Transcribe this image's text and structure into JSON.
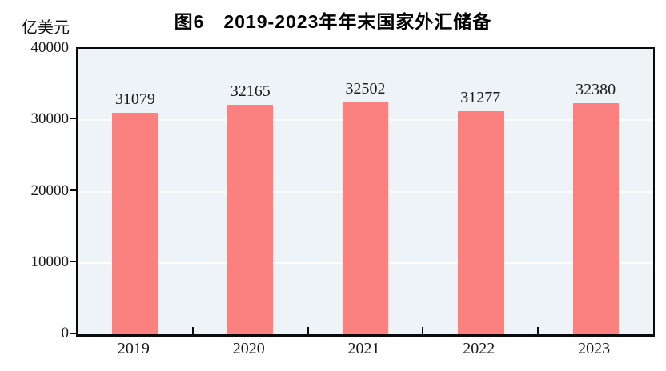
{
  "chart_data": {
    "type": "bar",
    "title": "图6　2019-2023年年末国家外汇储备",
    "unit_label": "亿美元",
    "categories": [
      "2019",
      "2020",
      "2021",
      "2022",
      "2023"
    ],
    "values": [
      31079,
      32165,
      32502,
      31277,
      32380
    ],
    "data_labels": [
      "31079",
      "32165",
      "32502",
      "31277",
      "32380"
    ],
    "ylim": [
      0,
      40000
    ],
    "yticks": [
      0,
      10000,
      20000,
      30000,
      40000
    ],
    "ytick_labels": [
      "0",
      "10000",
      "20000",
      "30000",
      "40000"
    ],
    "grid": true,
    "gridline_orientation": "horizontal",
    "legend_position": "none",
    "bar_color": "#FA8180",
    "plot_bg_color": "#EDF3F6",
    "gridline_color": "#FFFFFF",
    "axis_color": "#0A0A0A",
    "text_color": "#1A1A1A"
  }
}
